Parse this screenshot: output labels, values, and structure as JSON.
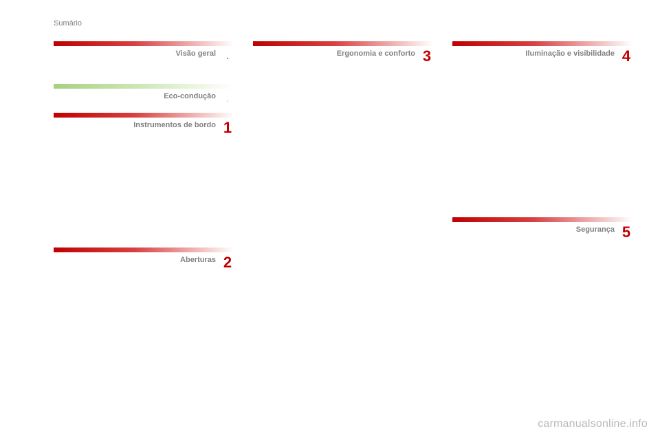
{
  "page_title": "Sumário",
  "watermark": "carmanualsonline.info",
  "col1": {
    "s1": {
      "title": "Visão geral",
      "marker": "."
    },
    "s2": {
      "title": "Eco-condução",
      "marker": "."
    },
    "s3": {
      "title": "Instrumentos de bordo",
      "marker": "1"
    },
    "s4": {
      "title": "Aberturas",
      "marker": "2"
    }
  },
  "col2": {
    "s1": {
      "title": "Ergonomia e conforto",
      "marker": "3"
    }
  },
  "col3": {
    "s1": {
      "title": "Iluminação e visibilidade",
      "marker": "4"
    },
    "s2": {
      "title": "Segurança",
      "marker": "5"
    }
  }
}
